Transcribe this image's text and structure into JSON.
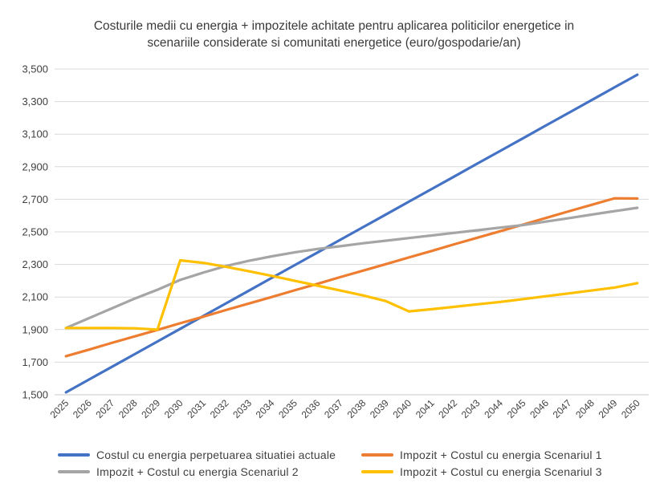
{
  "chart_data": {
    "type": "line",
    "title_lines": [
      "Costurile medii cu energia + impozitele achitate pentru aplicarea politicilor energetice in",
      "scenariile considerate si comunitati energetice (euro/gospodarie/an)"
    ],
    "x": [
      "2025",
      "2026",
      "2027",
      "2028",
      "2029",
      "2030",
      "2031",
      "2032",
      "2033",
      "2034",
      "2035",
      "2036",
      "2037",
      "2038",
      "2039",
      "2040",
      "2041",
      "2042",
      "2043",
      "2044",
      "2045",
      "2046",
      "2047",
      "2048",
      "2049",
      "2050"
    ],
    "ylim": [
      1500,
      3500
    ],
    "yticks": [
      "1,500",
      "1,700",
      "1,900",
      "2,100",
      "2,300",
      "2,500",
      "2,700",
      "2,900",
      "3,100",
      "3,300",
      "3,500"
    ],
    "grid": true,
    "legend_position": "bottom",
    "series": [
      {
        "name": "Costul cu energia perpetuarea situatiei actuale",
        "color": "#4472C4",
        "values": [
          1515,
          1593,
          1671,
          1749,
          1827,
          1905,
          1983,
          2061,
          2139,
          2217,
          2295,
          2373,
          2451,
          2529,
          2607,
          2685,
          2763,
          2841,
          2919,
          2997,
          3075,
          3153,
          3231,
          3309,
          3387,
          3465
        ]
      },
      {
        "name": "Impozit + Costul cu energia Scenariul 1",
        "color": "#ED7D31",
        "values": [
          1737,
          1777,
          1818,
          1858,
          1898,
          1939,
          1979,
          2020,
          2060,
          2100,
          2141,
          2181,
          2222,
          2262,
          2302,
          2343,
          2383,
          2424,
          2464,
          2504,
          2545,
          2585,
          2626,
          2666,
          2706,
          2705
        ]
      },
      {
        "name": "Impozit + Costul cu energia Scenariul 2",
        "color": "#A5A5A5",
        "values": [
          1910,
          1970,
          2030,
          2090,
          2145,
          2205,
          2250,
          2290,
          2322,
          2350,
          2374,
          2395,
          2412,
          2430,
          2446,
          2462,
          2478,
          2494,
          2510,
          2526,
          2542,
          2563,
          2584,
          2606,
          2627,
          2648
        ]
      },
      {
        "name": "Impozit + Costul cu energia Scenariul 3",
        "color": "#FFC000",
        "values": [
          1910,
          1910,
          1910,
          1908,
          1900,
          2325,
          2310,
          2285,
          2258,
          2230,
          2200,
          2170,
          2140,
          2110,
          2075,
          2012,
          2025,
          2040,
          2055,
          2070,
          2087,
          2105,
          2122,
          2140,
          2158,
          2185
        ]
      }
    ]
  }
}
